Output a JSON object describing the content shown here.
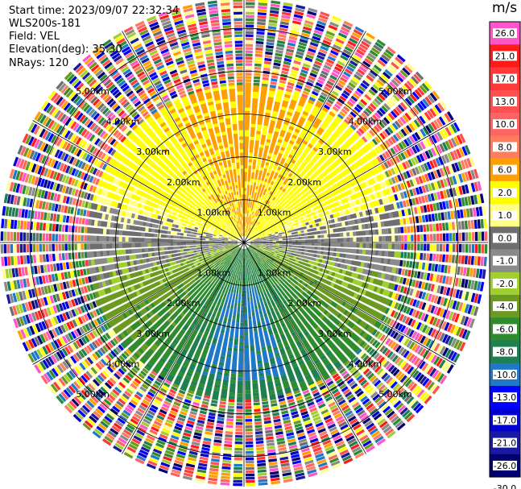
{
  "header": {
    "start_time": "Start time: 2023/09/07 22:32:34",
    "instrument": "WLS200s-181",
    "field": "Field: VEL",
    "elevation": "Elevation(deg): 35.30",
    "nrays": "NRays: 120"
  },
  "chart_data": {
    "type": "heatmap",
    "projection": "polar-ppi",
    "field": "VEL",
    "units": "m/s",
    "n_rays": 120,
    "range_rings": [
      "1.00km",
      "2.00km",
      "3.00km",
      "4.00km",
      "5.00km"
    ],
    "range_ring_values_km": [
      1,
      2,
      3,
      4,
      5
    ],
    "max_range_km": 5.7,
    "grid": true,
    "colorbar": {
      "label": "m/s",
      "ticks": [
        "26.0",
        "21.0",
        "17.0",
        "13.0",
        "10.0",
        "8.0",
        "6.0",
        "2.0",
        "1.0",
        "0.0",
        "-1.0",
        "-2.0",
        "-4.0",
        "-6.0",
        "-8.0",
        "-10.0",
        "-13.0",
        "-17.0",
        "-21.0",
        "-26.0",
        "-30.0"
      ],
      "colors": [
        "#ff55c8",
        "#ff1a1a",
        "#ff3838",
        "#ff5050",
        "#ff6464",
        "#ff7c5c",
        "#ffa000",
        "#ffff00",
        "#ffff8a",
        "#6e6e6e",
        "#8a8a8a",
        "#a0d030",
        "#6a9a20",
        "#2e8b2e",
        "#1e8050",
        "#1f78c8",
        "#0000ff",
        "#0000d0",
        "#1a1aa0",
        "#000070"
      ]
    }
  }
}
